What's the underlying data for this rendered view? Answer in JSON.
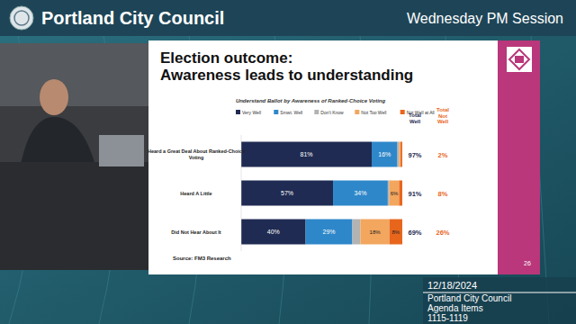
{
  "header": {
    "title": "Portland City Council",
    "session": "Wednesday PM Session"
  },
  "footer": {
    "date": "12/18/2024",
    "body": "Portland City Council",
    "items_label": "Agenda Items",
    "items": "1115-1119"
  },
  "slide": {
    "page": "26"
  },
  "chart_data": {
    "type": "bar",
    "orientation": "horizontal",
    "stacked": true,
    "data_labels": true,
    "legend": "top",
    "tick_labels": "y",
    "title": "Election outcome:\nAwareness leads to understanding",
    "subtitle": "Understand Ballot by Awareness of Ranked-Choice Voting",
    "annotations": [
      "Source: FM3 Research"
    ],
    "categories": [
      "Heard a Great Deal About Ranked-Choice Voting",
      "Heard A Little",
      "Did Not Hear About It"
    ],
    "xlim": [
      0,
      100
    ],
    "xticks": [],
    "series": [
      {
        "name": "Very Well",
        "color": "#1f2b52",
        "values": [
          81,
          57,
          40
        ],
        "value_labels": [
          "81%",
          "57%",
          "40%"
        ]
      },
      {
        "name": "Smwt. Well",
        "color": "#2e87c9",
        "values": [
          16,
          34,
          29
        ],
        "value_labels": [
          "16%",
          "34%",
          "29%"
        ]
      },
      {
        "name": "Don't Know",
        "color": "#b3b3b3",
        "values": [
          1,
          1,
          5
        ],
        "value_labels": [
          null,
          null,
          null
        ]
      },
      {
        "name": "Not Too Well",
        "color": "#f2a65e",
        "values": [
          1,
          6,
          18
        ],
        "value_labels": [
          null,
          "6%",
          "18%"
        ]
      },
      {
        "name": "Not Well at All",
        "color": "#e8661c",
        "values": [
          1,
          2,
          8
        ],
        "value_labels": [
          null,
          null,
          "8%"
        ]
      }
    ],
    "totals": [
      {
        "name": "Total Well",
        "color": "#1f2b52",
        "values": [
          97,
          91,
          69
        ],
        "value_labels": [
          "97%",
          "91%",
          "69%"
        ]
      },
      {
        "name": "Total Not Well",
        "color": "#e8661c",
        "values": [
          2,
          8,
          26
        ],
        "value_labels": [
          "2%",
          "8%",
          "26%"
        ]
      }
    ]
  }
}
